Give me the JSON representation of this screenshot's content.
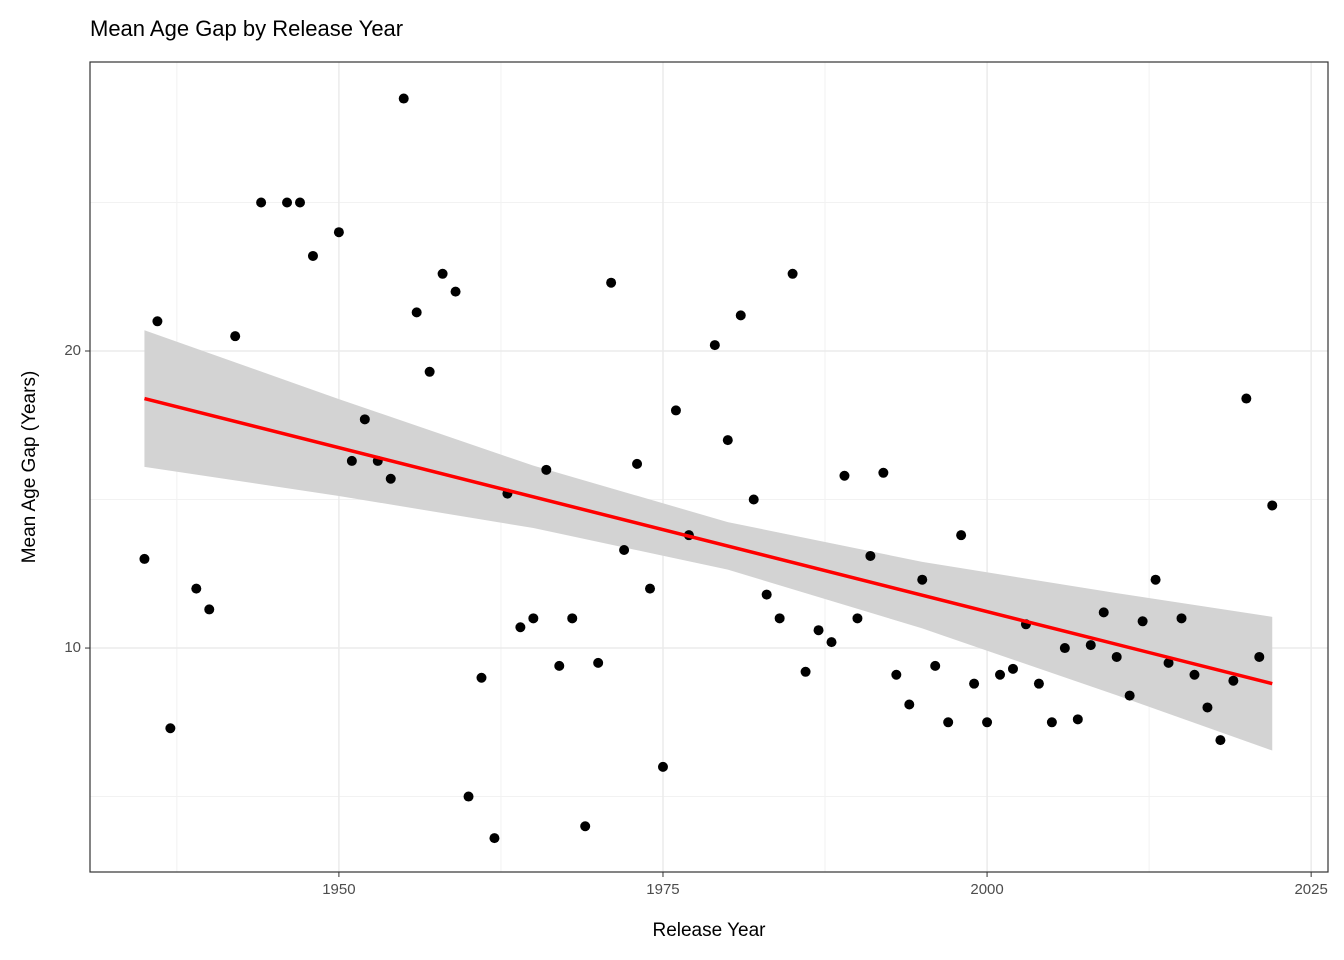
{
  "chart_data": {
    "type": "scatter",
    "title": "Mean Age Gap by Release Year",
    "x_label": "Release Year",
    "y_label": "Mean Age Gap (Years)",
    "xlim": [
      1930.8,
      2026.3
    ],
    "ylim": [
      2.46,
      29.73
    ],
    "xticks": [
      1950,
      1975,
      2000,
      2025
    ],
    "yticks": [
      10,
      20
    ],
    "xminor": [
      1937.5,
      1962.5,
      1987.5,
      2012.5
    ],
    "yminor": [
      5,
      15,
      25
    ],
    "grid": true,
    "color": "#000000",
    "x": [
      1935,
      1936,
      1937,
      1939,
      1940,
      1942,
      1944,
      1946,
      1947,
      1948,
      1950,
      1951,
      1952,
      1953,
      1954,
      1955,
      1956,
      1957,
      1958,
      1959,
      1960,
      1961,
      1962,
      1963,
      1964,
      1965,
      1966,
      1967,
      1968,
      1969,
      1970,
      1971,
      1972,
      1973,
      1974,
      1975,
      1976,
      1977,
      1979,
      1980,
      1981,
      1982,
      1983,
      1984,
      1985,
      1986,
      1987,
      1988,
      1989,
      1990,
      1991,
      1992,
      1993,
      1994,
      1995,
      1996,
      1997,
      1998,
      1999,
      2000,
      2001,
      2002,
      2003,
      2004,
      2005,
      2006,
      2007,
      2008,
      2009,
      2010,
      2011,
      2012,
      2013,
      2014,
      2015,
      2016,
      2017,
      2018,
      2019,
      2020,
      2021,
      2022
    ],
    "values": [
      13.0,
      21.0,
      7.3,
      12.0,
      11.3,
      20.5,
      25.0,
      25.0,
      25.0,
      23.2,
      24.0,
      16.3,
      17.7,
      16.3,
      15.7,
      28.5,
      21.3,
      19.3,
      22.6,
      22.0,
      5.0,
      9.0,
      3.6,
      15.2,
      10.7,
      11.0,
      16.0,
      9.4,
      11.0,
      4.0,
      9.5,
      22.3,
      13.3,
      16.2,
      12.0,
      6.0,
      18.0,
      13.8,
      20.2,
      17.0,
      21.2,
      15.0,
      11.8,
      11.0,
      22.6,
      9.2,
      10.6,
      10.2,
      15.8,
      11.0,
      13.1,
      15.9,
      9.1,
      8.1,
      12.3,
      9.4,
      7.5,
      13.8,
      8.8,
      7.5,
      9.1,
      9.3,
      10.8,
      8.8,
      7.5,
      10.0,
      7.6,
      10.1,
      11.2,
      9.7,
      8.4,
      10.9,
      12.3,
      9.5,
      11.0,
      9.1,
      8.0,
      6.9,
      8.9,
      18.4,
      9.7,
      14.8
    ],
    "fit": {
      "x": [
        1935,
        2022
      ],
      "values": [
        18.4,
        8.8
      ],
      "color": "#ff0000"
    },
    "band": {
      "x": [
        1935,
        1950,
        1965,
        1980,
        1995,
        2010,
        2022
      ],
      "upper": [
        20.7,
        18.38,
        16.14,
        14.24,
        12.9,
        11.85,
        11.05
      ],
      "lower": [
        16.1,
        15.12,
        14.04,
        12.64,
        10.66,
        8.41,
        6.55
      ],
      "color": "#d3d3d3"
    }
  }
}
